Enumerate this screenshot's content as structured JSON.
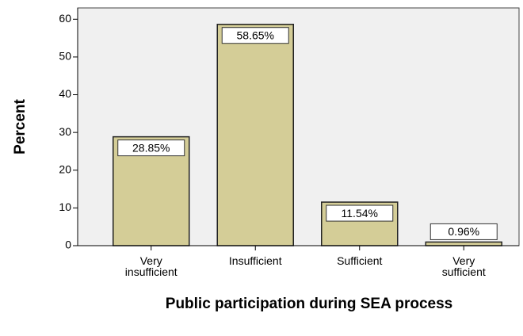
{
  "chart_data": {
    "type": "bar",
    "x_label": "Public participation during SEA process",
    "y_label": "Percent",
    "categories": [
      "Very insufficient",
      "Insufficient",
      "Sufficient",
      "Very sufficient"
    ],
    "values": [
      28.85,
      58.65,
      11.54,
      0.96
    ],
    "value_labels": [
      "28.85%",
      "58.65%",
      "11.54%",
      "0.96%"
    ],
    "color": "#d4cd97",
    "ylim": [
      0,
      63
    ],
    "yticks": [
      0,
      10,
      20,
      30,
      40,
      50,
      60
    ],
    "grid": false
  }
}
